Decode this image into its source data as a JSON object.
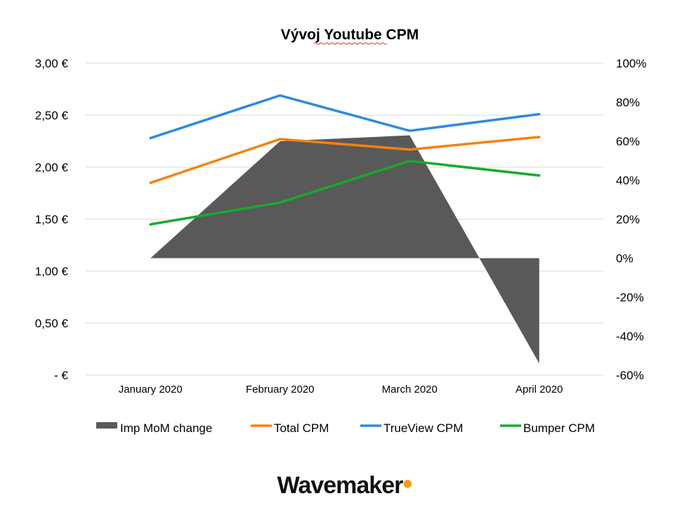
{
  "chart_data": {
    "type": "line",
    "title": "Vývoj Youtube CPM",
    "categories": [
      "January 2020",
      "February 2020",
      "March 2020",
      "April 2020"
    ],
    "y_left": {
      "ylim": [
        0,
        3
      ],
      "ticks": [
        0,
        0.5,
        1,
        1.5,
        2,
        2.5,
        3
      ],
      "tick_labels": [
        "-   €",
        "0,50 €",
        "1,00 €",
        "1,50 €",
        "2,00 €",
        "2,50 €",
        "3,00 €"
      ]
    },
    "y_right": {
      "ylim": [
        -60,
        100
      ],
      "ticks": [
        -60,
        -40,
        -20,
        0,
        20,
        40,
        60,
        80,
        100
      ],
      "tick_labels": [
        "-60%",
        "-40%",
        "-20%",
        "0%",
        "20%",
        "40%",
        "60%",
        "80%",
        "100%"
      ]
    },
    "area_series": {
      "name": "Imp MoM change",
      "axis": "right",
      "color": "#595959",
      "values": [
        0,
        60,
        63,
        -54
      ]
    },
    "series": [
      {
        "name": "Total CPM",
        "axis": "left",
        "color": "#f5820d",
        "values": [
          1.85,
          2.27,
          2.17,
          2.29
        ]
      },
      {
        "name": "TrueView CPM",
        "axis": "left",
        "color": "#2e8ade",
        "values": [
          2.28,
          2.69,
          2.35,
          2.51
        ]
      },
      {
        "name": "Bumper CPM",
        "axis": "left",
        "color": "#16ab2f",
        "values": [
          1.45,
          1.66,
          2.06,
          1.92
        ]
      }
    ],
    "grid": true,
    "legend": "bottom"
  },
  "branding": {
    "logo_text": "Wavemaker"
  }
}
